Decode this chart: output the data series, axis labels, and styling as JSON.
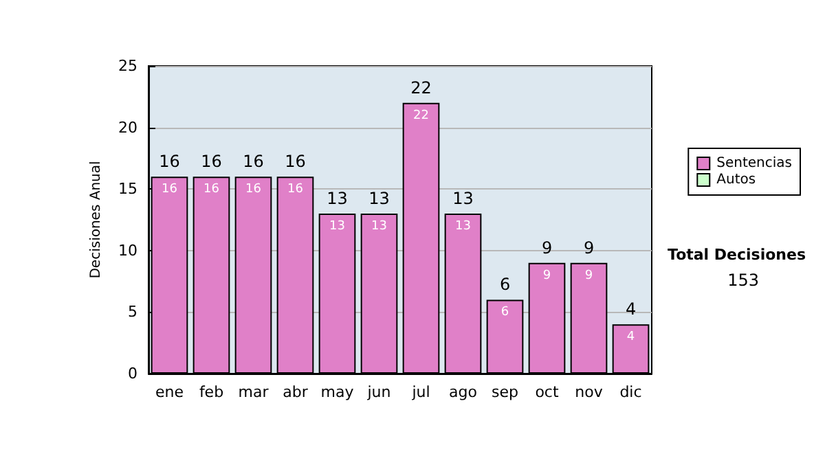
{
  "chart_data": {
    "type": "bar",
    "ylabel": "Decisiones Anual",
    "categories": [
      "ene",
      "feb",
      "mar",
      "abr",
      "may",
      "jun",
      "jul",
      "ago",
      "sep",
      "oct",
      "nov",
      "dic"
    ],
    "series": [
      {
        "name": "Sentencias",
        "color": "#e080c8",
        "values": [
          16,
          16,
          16,
          16,
          13,
          13,
          22,
          13,
          6,
          9,
          9,
          4
        ],
        "value_labels": [
          "16",
          "16",
          "16",
          "16",
          "13",
          "13",
          "22",
          "13",
          "6",
          "9",
          "9",
          "4"
        ]
      },
      {
        "name": "Autos",
        "color": "#ccffcc",
        "values": [
          0,
          0,
          0,
          0,
          0,
          0,
          0,
          0,
          0,
          0,
          0,
          0
        ]
      }
    ],
    "stacked": true,
    "totals": [
      "16",
      "16",
      "16",
      "16",
      "13",
      "13",
      "22",
      "13",
      "6",
      "9",
      "9",
      "4"
    ],
    "ylim": [
      0,
      25
    ],
    "yticks": [
      0,
      5,
      10,
      15,
      20,
      25
    ],
    "grid": "y",
    "legend": "right",
    "annotations": [
      "Total Decisiones",
      "153"
    ]
  }
}
